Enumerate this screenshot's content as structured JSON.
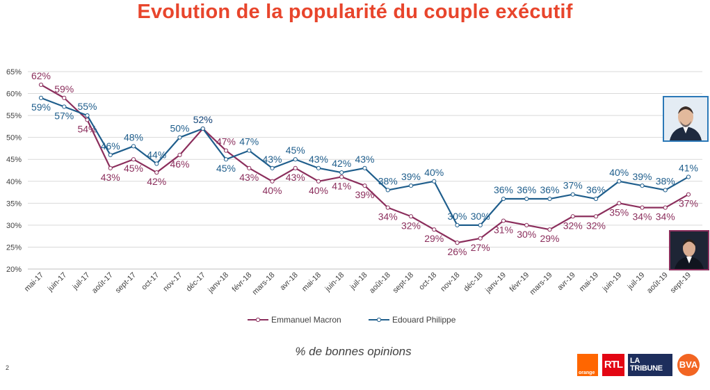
{
  "title": "Evolution de la popularité du couple exécutif",
  "subtitle": "% de bonnes opinions",
  "page_number": "2",
  "logos": {
    "orange": "orange",
    "rtl": "RTL",
    "tribune_top": "LA",
    "tribune_bottom": "TRIBUNE",
    "bva": "BVA"
  },
  "colors": {
    "macron": "#8B2E5C",
    "philippe": "#1F5E8C",
    "title": "#E8452C"
  },
  "chart_data": {
    "type": "line",
    "title": "Evolution de la popularité du couple exécutif",
    "xlabel": "% de bonnes opinions",
    "ylabel": "",
    "ylim": [
      20,
      65
    ],
    "yticks": [
      "20%",
      "25%",
      "30%",
      "35%",
      "40%",
      "45%",
      "50%",
      "55%",
      "60%",
      "65%"
    ],
    "grid": true,
    "legend_position": "bottom",
    "categories": [
      "mai-17",
      "juin-17",
      "juil-17",
      "août-17",
      "sept-17",
      "oct-17",
      "nov-17",
      "déc-17",
      "janv-18",
      "févr-18",
      "mars-18",
      "avr-18",
      "mai-18",
      "juin-18",
      "juil-18",
      "août-18",
      "sept-18",
      "oct-18",
      "nov-18",
      "déc-18",
      "janv-19",
      "févr-19",
      "mars-19",
      "avr-19",
      "mai-19",
      "juin-19",
      "juil-19",
      "août-19",
      "sept-19"
    ],
    "series": [
      {
        "name": "Emmanuel Macron",
        "color": "#8B2E5C",
        "values": [
          62,
          59,
          54,
          43,
          45,
          42,
          46,
          52,
          47,
          43,
          40,
          43,
          40,
          41,
          39,
          34,
          32,
          29,
          26,
          27,
          31,
          30,
          29,
          32,
          32,
          35,
          34,
          34,
          37
        ],
        "labels": [
          "62%",
          "59%",
          "54%",
          "43%",
          "45%",
          "42%",
          "46%",
          "52%",
          "47%",
          "43%",
          "40%",
          "43%",
          "40%",
          "41%",
          "39%",
          "34%",
          "32%",
          "29%",
          "26%",
          "27%",
          "31%",
          "30%",
          "29%",
          "32%",
          "32%",
          "35%",
          "34%",
          "34%",
          "37%"
        ],
        "label_positions": [
          "above",
          "above",
          "below",
          "below",
          "below",
          "below",
          "below",
          "above",
          "above",
          "below",
          "below",
          "below",
          "below",
          "below",
          "below",
          "below",
          "below",
          "below",
          "below",
          "below",
          "below",
          "below",
          "below",
          "below",
          "below",
          "below",
          "below",
          "below",
          "below"
        ]
      },
      {
        "name": "Edouard Philippe",
        "color": "#1F5E8C",
        "values": [
          59,
          57,
          55,
          46,
          48,
          44,
          50,
          52,
          45,
          47,
          43,
          45,
          43,
          42,
          43,
          38,
          39,
          40,
          30,
          30,
          36,
          36,
          36,
          37,
          36,
          40,
          39,
          38,
          41
        ],
        "labels": [
          "59%",
          "57%",
          "55%",
          "46%",
          "48%",
          "44%",
          "50%",
          "52%",
          "45%",
          "47%",
          "43%",
          "45%",
          "43%",
          "42%",
          "43%",
          "38%",
          "39%",
          "40%",
          "30%",
          "30%",
          "36%",
          "36%",
          "36%",
          "37%",
          "36%",
          "40%",
          "39%",
          "38%",
          "41%"
        ],
        "label_positions": [
          "below",
          "below",
          "above",
          "above",
          "above",
          "above",
          "above",
          "above",
          "below",
          "above",
          "above",
          "above",
          "above",
          "above",
          "above",
          "above",
          "above",
          "above",
          "above",
          "above",
          "above",
          "above",
          "above",
          "above",
          "above",
          "above",
          "above",
          "above",
          "above"
        ]
      }
    ]
  }
}
